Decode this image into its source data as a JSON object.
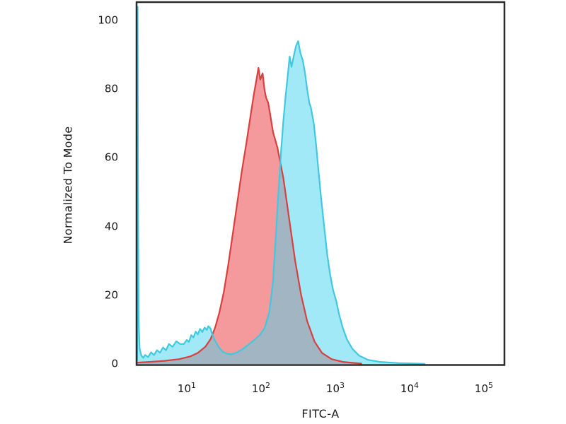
{
  "figure": {
    "background": "#ffffff",
    "frame_color": "#2b2b2b",
    "text_color": "#1a1a1a"
  },
  "chart_data": {
    "type": "area",
    "subtype": "flow-cytometry-histogram-overlay",
    "title": "",
    "xlabel": "FITC-A",
    "ylabel": "Normalized To Mode",
    "x_scale": "log",
    "xlim": [
      2.11,
      189000
    ],
    "ylim": [
      0,
      105
    ],
    "y_ticks": [
      0,
      20,
      40,
      60,
      80,
      100
    ],
    "x_ticks": [
      {
        "base": "10",
        "exponent": 1
      },
      {
        "base": "10",
        "exponent": 2
      },
      {
        "base": "10",
        "exponent": 3
      },
      {
        "base": "10",
        "exponent": 4
      },
      {
        "base": "10",
        "exponent": 5
      }
    ],
    "grid": false,
    "legend": "none",
    "overlap_fill": "#a1b5c2",
    "series": [
      {
        "id": "red-histogram",
        "stroke": "#d8403f",
        "fill": "#f59a9c",
        "peak": {
          "x": 92,
          "y": 86
        },
        "points": [
          [
            2.15,
            0.4
          ],
          [
            3.16,
            0.6
          ],
          [
            5.01,
            0.9
          ],
          [
            7.94,
            1.4
          ],
          [
            11.2,
            2.2
          ],
          [
            14.1,
            3.2
          ],
          [
            17.8,
            5.0
          ],
          [
            20.9,
            7.2
          ],
          [
            24,
            10.5
          ],
          [
            27.5,
            15
          ],
          [
            31.6,
            21
          ],
          [
            36.3,
            29
          ],
          [
            41.7,
            38
          ],
          [
            47.9,
            47
          ],
          [
            55,
            56
          ],
          [
            63.1,
            64
          ],
          [
            70.8,
            71
          ],
          [
            79.4,
            78
          ],
          [
            87.1,
            83
          ],
          [
            92.3,
            86.2
          ],
          [
            97.7,
            82.8
          ],
          [
            105,
            84.6
          ],
          [
            111,
            80
          ],
          [
            117,
            77.5
          ],
          [
            125,
            76
          ],
          [
            132,
            73
          ],
          [
            145,
            67.5
          ],
          [
            166,
            63
          ],
          [
            200,
            54
          ],
          [
            240,
            42
          ],
          [
            288,
            30
          ],
          [
            347,
            20
          ],
          [
            417,
            12.5
          ],
          [
            525,
            6.5
          ],
          [
            661,
            3.2
          ],
          [
            891,
            1.4
          ],
          [
            1259,
            0.6
          ],
          [
            2239,
            0.1
          ]
        ]
      },
      {
        "id": "cyan-histogram",
        "stroke": "#41c8e1",
        "fill": "#a2e9f7",
        "peak": {
          "x": 316,
          "y": 94
        },
        "points": [
          [
            2.15,
            1
          ],
          [
            2.18,
            104
          ],
          [
            2.21,
            50
          ],
          [
            2.25,
            13
          ],
          [
            2.32,
            4.5
          ],
          [
            2.45,
            2.4
          ],
          [
            2.6,
            1.8
          ],
          [
            2.75,
            2.6
          ],
          [
            3.02,
            2.0
          ],
          [
            3.31,
            3.4
          ],
          [
            3.63,
            2.6
          ],
          [
            3.98,
            4.0
          ],
          [
            4.37,
            3.3
          ],
          [
            4.79,
            4.8
          ],
          [
            5.25,
            4.0
          ],
          [
            5.75,
            5.8
          ],
          [
            6.46,
            5.0
          ],
          [
            7.24,
            6.6
          ],
          [
            8.13,
            5.8
          ],
          [
            9.12,
            5.8
          ],
          [
            10,
            7.0
          ],
          [
            10.7,
            6.4
          ],
          [
            11.5,
            8.4
          ],
          [
            12.3,
            7.7
          ],
          [
            13.2,
            9.4
          ],
          [
            14.1,
            8.6
          ],
          [
            15.1,
            10.2
          ],
          [
            16.2,
            9.3
          ],
          [
            17.4,
            10.6
          ],
          [
            18.6,
            9.9
          ],
          [
            19.5,
            11.0
          ],
          [
            20.9,
            10.3
          ],
          [
            21.9,
            8.8
          ],
          [
            24,
            6.8
          ],
          [
            26.9,
            4.9
          ],
          [
            30.2,
            3.6
          ],
          [
            34.7,
            3.0
          ],
          [
            39.8,
            2.8
          ],
          [
            47.9,
            3.4
          ],
          [
            57.5,
            4.4
          ],
          [
            69.2,
            5.8
          ],
          [
            83.2,
            7.2
          ],
          [
            97.7,
            8.6
          ],
          [
            112,
            10.5
          ],
          [
            129,
            15
          ],
          [
            145,
            24
          ],
          [
            158,
            37
          ],
          [
            174,
            52
          ],
          [
            186,
            62
          ],
          [
            200,
            71
          ],
          [
            214,
            78
          ],
          [
            229,
            84
          ],
          [
            243,
            89.5
          ],
          [
            257,
            86.5
          ],
          [
            275,
            89.5
          ],
          [
            295,
            92.5
          ],
          [
            316,
            94
          ],
          [
            339,
            90.5
          ],
          [
            363,
            88.5
          ],
          [
            389,
            85
          ],
          [
            417,
            80
          ],
          [
            447,
            76
          ],
          [
            468,
            74.8
          ],
          [
            513,
            70
          ],
          [
            550,
            64
          ],
          [
            589,
            57
          ],
          [
            646,
            48
          ],
          [
            708,
            40
          ],
          [
            776,
            32
          ],
          [
            851,
            26
          ],
          [
            933,
            21.5
          ],
          [
            1023,
            18.5
          ],
          [
            1122,
            14.5
          ],
          [
            1259,
            10.5
          ],
          [
            1445,
            7
          ],
          [
            1698,
            4.4
          ],
          [
            2089,
            2.4
          ],
          [
            2754,
            1.2
          ],
          [
            3981,
            0.6
          ],
          [
            7079,
            0.25
          ],
          [
            12589,
            0.1
          ],
          [
            15849,
            0.05
          ]
        ]
      }
    ]
  }
}
